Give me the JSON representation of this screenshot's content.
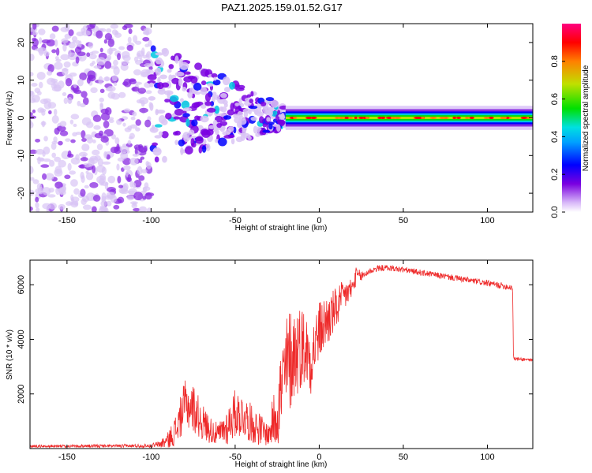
{
  "title": "PAZ1.2025.159.01.52.G17",
  "chart_data": [
    {
      "type": "heatmap",
      "xlabel": "Height of straight line (km)",
      "ylabel": "Frequency (Hz)",
      "xlim": [
        -172,
        127
      ],
      "ylim": [
        -25,
        25
      ],
      "xticks": [
        -150,
        -100,
        -50,
        0,
        50,
        100
      ],
      "yticks": [
        -20,
        -10,
        0,
        10,
        20
      ],
      "colorbar": {
        "label": "Normalized spectral amplitude",
        "range": [
          0,
          1
        ],
        "ticks": [
          0.0,
          0.2,
          0.4,
          0.6,
          0.8
        ],
        "colormap": [
          "#e8d8f8",
          "#7a00e0",
          "#0000ff",
          "#00a0ff",
          "#00e0e0",
          "#00e000",
          "#c0e000",
          "#ff8000",
          "#ff0000",
          "#ff0080"
        ]
      },
      "features": [
        {
          "x_range": [
            -172,
            -100
          ],
          "freq_range": [
            -25,
            25
          ],
          "amplitude": 0.05
        },
        {
          "x_range": [
            -100,
            -20
          ],
          "freq_range": [
            -15,
            12
          ],
          "amplitude": 0.15
        },
        {
          "x_range": [
            -20,
            127
          ],
          "freq_center": 0,
          "bandwidth": 3,
          "amplitude": 0.5
        }
      ]
    },
    {
      "type": "line",
      "xlabel": "Height of straight line (km)",
      "ylabel": "SNR (10 * v/v)",
      "xlim": [
        -172,
        127
      ],
      "ylim": [
        0,
        6900
      ],
      "xticks": [
        -150,
        -100,
        -50,
        0,
        50,
        100
      ],
      "yticks": [
        2000,
        4000,
        6000
      ],
      "color": "#ee2a2a",
      "x": [
        -172,
        -160,
        -140,
        -120,
        -100,
        -95,
        -90,
        -85,
        -80,
        -75,
        -70,
        -65,
        -60,
        -55,
        -50,
        -45,
        -40,
        -35,
        -30,
        -25,
        -20,
        -18,
        -15,
        -10,
        -5,
        0,
        5,
        10,
        15,
        20,
        22,
        25,
        30,
        35,
        40,
        50,
        60,
        70,
        80,
        90,
        100,
        105,
        110,
        115,
        115.5,
        120,
        127
      ],
      "y": [
        80,
        80,
        90,
        90,
        100,
        150,
        300,
        700,
        1600,
        1500,
        1000,
        700,
        500,
        800,
        1300,
        1200,
        900,
        700,
        500,
        1500,
        2800,
        3200,
        3500,
        3800,
        3300,
        4300,
        4700,
        5100,
        5600,
        5900,
        6350,
        6300,
        6500,
        6600,
        6620,
        6550,
        6450,
        6350,
        6250,
        6150,
        6050,
        6000,
        5950,
        5900,
        3300,
        3270,
        3250
      ],
      "noise_amplitude": [
        60,
        60,
        60,
        60,
        80,
        150,
        300,
        600,
        900,
        900,
        700,
        500,
        400,
        700,
        900,
        800,
        700,
        600,
        400,
        1500,
        2000,
        2000,
        1800,
        1500,
        1300,
        1100,
        1000,
        800,
        600,
        400,
        300,
        200,
        120,
        120,
        110,
        110,
        110,
        110,
        110,
        110,
        110,
        120,
        120,
        120,
        60,
        60,
        60
      ]
    }
  ]
}
